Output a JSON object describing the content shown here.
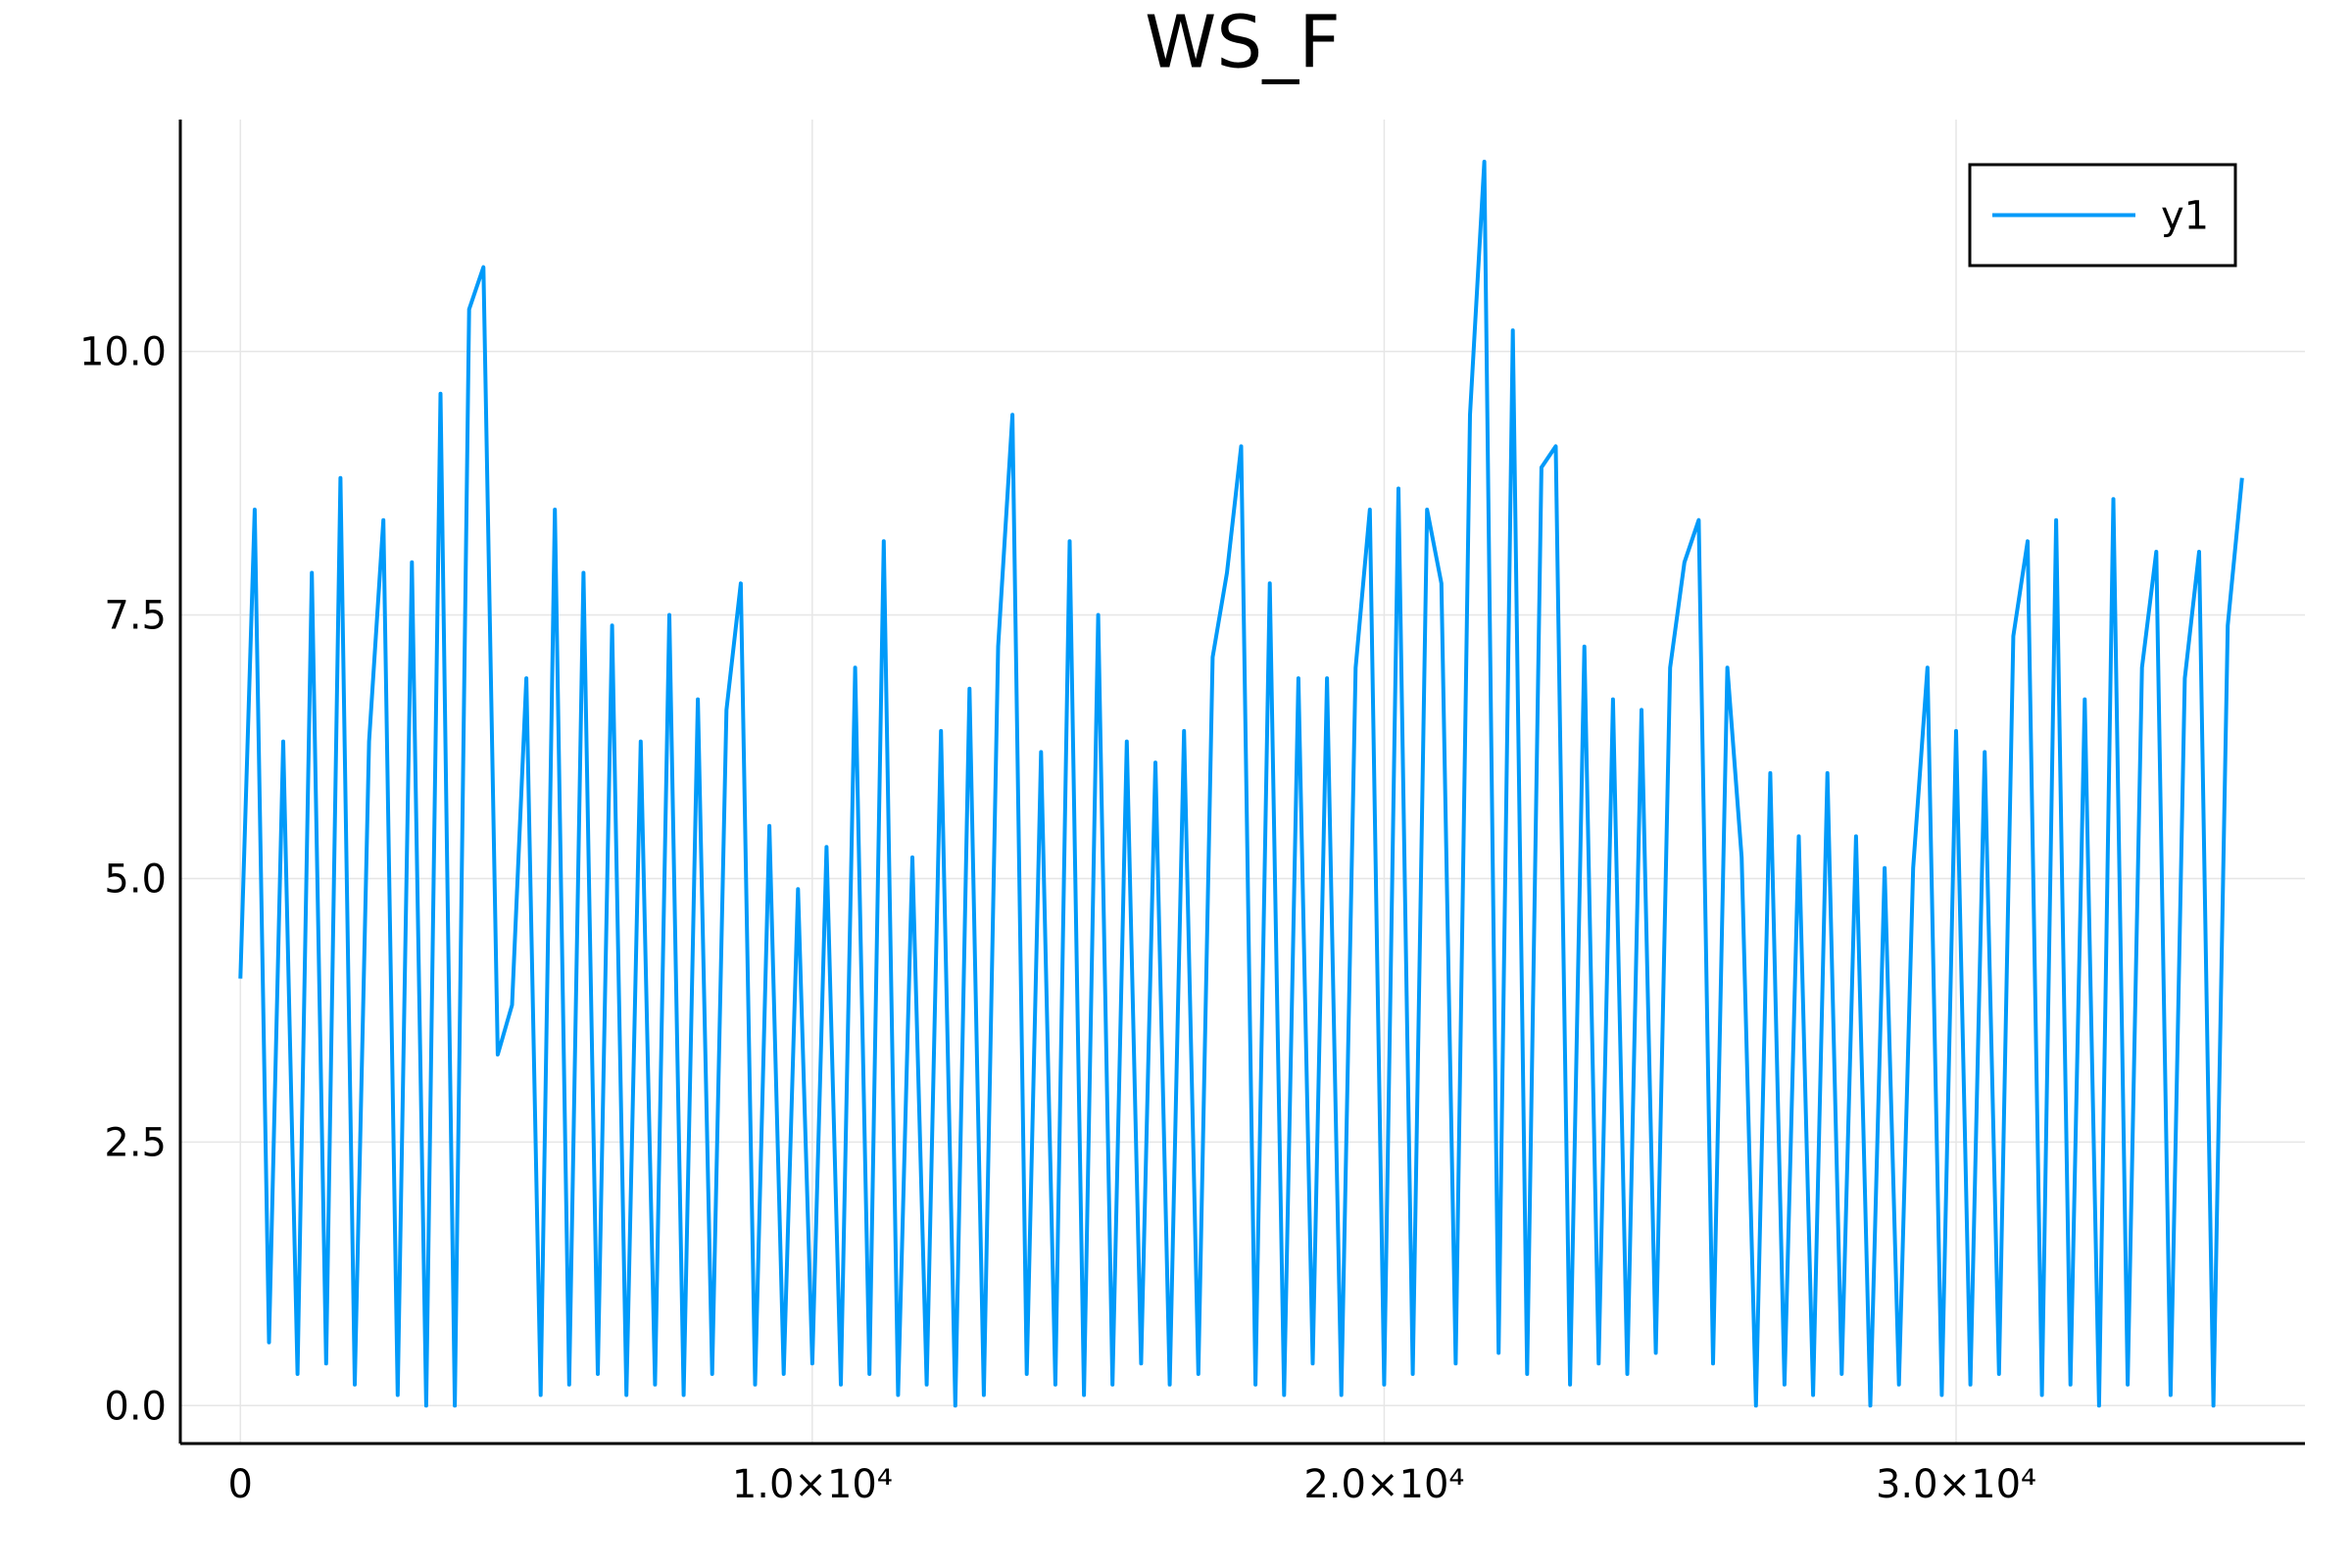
{
  "chart_data": {
    "type": "line",
    "title": "WS_F",
    "x": [
      0,
      250,
      500,
      750,
      1000,
      1250,
      1500,
      1750,
      2000,
      2250,
      2500,
      2750,
      3000,
      3250,
      3500,
      3750,
      4000,
      4250,
      4500,
      4750,
      5000,
      5250,
      5500,
      5750,
      6000,
      6250,
      6500,
      6750,
      7000,
      7250,
      7500,
      7750,
      8000,
      8250,
      8500,
      8750,
      9000,
      9250,
      9500,
      9750,
      10000,
      10250,
      10500,
      10750,
      11000,
      11250,
      11500,
      11750,
      12000,
      12250,
      12500,
      12750,
      13000,
      13250,
      13500,
      13750,
      14000,
      14250,
      14500,
      14750,
      15000,
      15250,
      15500,
      15750,
      16000,
      16250,
      16500,
      16750,
      17000,
      17250,
      17500,
      17750,
      18000,
      18250,
      18500,
      18750,
      19000,
      19250,
      19500,
      19750,
      20000,
      20250,
      20500,
      20750,
      21000,
      21250,
      21500,
      21750,
      22000,
      22250,
      22500,
      22750,
      23000,
      23250,
      23500,
      23750,
      24000,
      24250,
      24500,
      24750,
      25000,
      25250,
      25500,
      25750,
      26000,
      26250,
      26500,
      26750,
      27000,
      27250,
      27500,
      27750,
      28000,
      28250,
      28500,
      28750,
      29000,
      29250,
      29500,
      29750,
      30000,
      30250,
      30500,
      30750,
      31000,
      31250,
      31500,
      31750,
      32000,
      32250,
      32500,
      32750,
      33000,
      33250,
      33500,
      33750,
      34000,
      34250,
      34500,
      34750,
      35000
    ],
    "series": [
      {
        "name": "y1",
        "color": "#009af9",
        "values": [
          4.05,
          8.5,
          0.6,
          6.3,
          0.3,
          7.9,
          0.4,
          8.8,
          0.2,
          6.3,
          8.4,
          0.1,
          8.0,
          0.0,
          9.6,
          0.0,
          10.4,
          10.8,
          3.33,
          3.8,
          6.9,
          0.1,
          8.5,
          0.2,
          7.9,
          0.3,
          7.4,
          0.1,
          6.3,
          0.2,
          7.5,
          0.1,
          6.7,
          0.3,
          6.6,
          7.8,
          0.2,
          5.5,
          0.3,
          4.9,
          0.4,
          5.3,
          0.2,
          7.0,
          0.3,
          8.2,
          0.1,
          5.2,
          0.2,
          6.4,
          0.0,
          6.8,
          0.1,
          7.2,
          9.4,
          0.3,
          6.2,
          0.2,
          8.2,
          0.1,
          7.5,
          0.2,
          6.3,
          0.4,
          6.1,
          0.2,
          6.4,
          0.3,
          7.1,
          7.9,
          9.1,
          0.2,
          7.8,
          0.1,
          6.9,
          0.4,
          6.9,
          0.1,
          7.0,
          8.5,
          0.2,
          8.7,
          0.3,
          8.5,
          7.8,
          0.4,
          9.4,
          11.8,
          0.5,
          10.2,
          0.3,
          8.9,
          9.1,
          0.2,
          7.2,
          0.4,
          6.7,
          0.3,
          6.6,
          0.5,
          7.0,
          8.0,
          8.4,
          0.4,
          7.0,
          5.2,
          0.0,
          6.0,
          0.2,
          5.4,
          0.1,
          6.0,
          0.3,
          5.4,
          0.0,
          5.1,
          0.2,
          5.1,
          7.0,
          0.1,
          6.4,
          0.2,
          6.2,
          0.3,
          7.3,
          8.2,
          0.1,
          8.4,
          0.2,
          6.7,
          0.0,
          8.6,
          0.2,
          7.0,
          8.1,
          0.1,
          6.9,
          8.1,
          0.0,
          7.4,
          8.8
        ]
      }
    ],
    "xlim": [
      -1050,
      36100
    ],
    "ylim": [
      -0.36,
      12.2
    ],
    "xticks": [
      0,
      {
        "value": 10000,
        "label": "1.0×10⁴"
      },
      {
        "value": 20000,
        "label": "2.0×10⁴"
      },
      {
        "value": 30000,
        "label": "3.0×10⁴"
      }
    ],
    "yticks": [
      {
        "value": 0,
        "label": "0.0"
      },
      2.5,
      {
        "value": 5,
        "label": "5.0"
      },
      7.5,
      {
        "value": 10,
        "label": "10.0"
      }
    ],
    "grid": true,
    "legend": "top-right"
  }
}
